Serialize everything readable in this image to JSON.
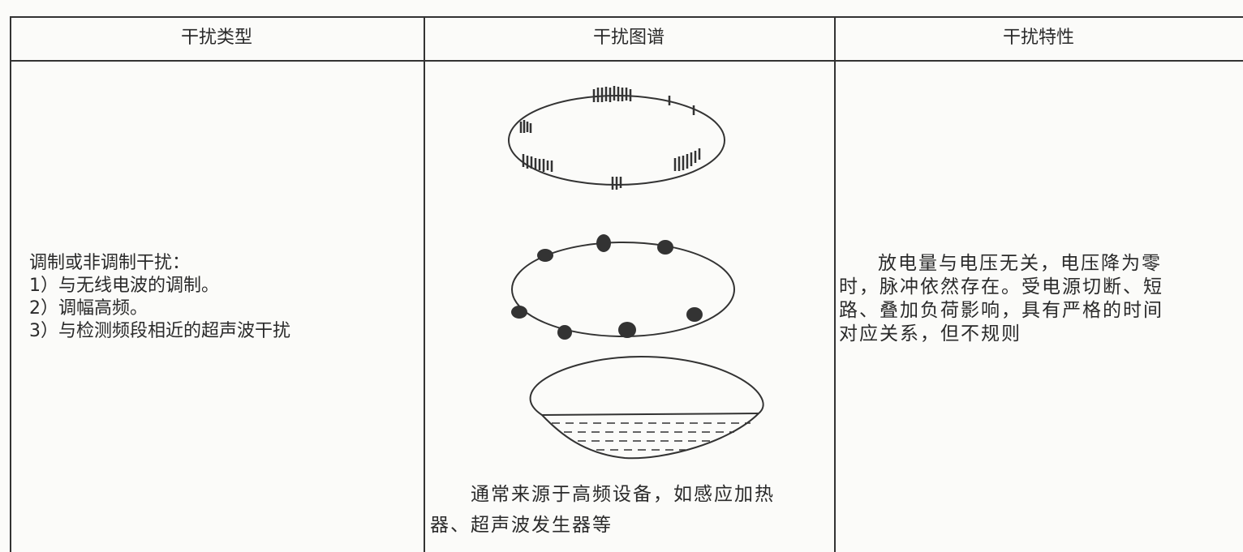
{
  "table": {
    "headers": [
      "干扰类型",
      "干扰图谱",
      "干扰特性"
    ],
    "rows": [
      [
        [
          "调制或非调制干扰：",
          "1）与无线电波的调制。",
          "2）调幅高频。",
          "3）与检测频段相近的超声波干扰"
        ],
        [
          "通常来源于高频设备，如感应加热",
          "器、超声波发生器等"
        ],
        [
          "放电量与电压无关，电压降为零",
          "时，脉冲依然存在。受电源切断、短",
          "路、叠加负荷影响，具有严格的时间",
          "对应关系，但不规则"
        ]
      ]
    ]
  }
}
